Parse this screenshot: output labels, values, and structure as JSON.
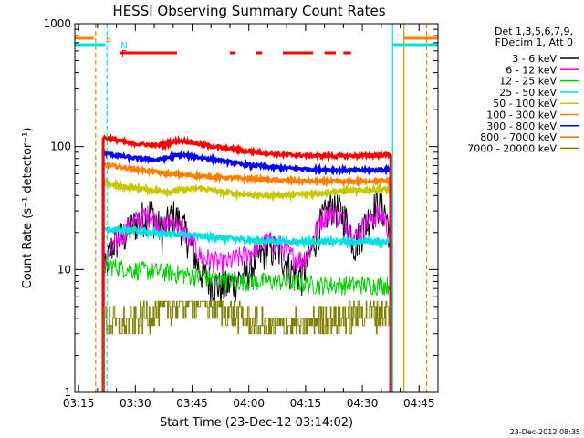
{
  "chart_data": {
    "type": "line",
    "title": "HESSI Observing Summary Count Rates",
    "xlabel": "Start Time (23-Dec-12 03:14:02)",
    "ylabel": "Count Rate (s⁻¹ detector⁻¹)",
    "footer": "23-Dec-2012 08:35",
    "x_axis": {
      "min_minutes": 0,
      "max_minutes": 96,
      "ticks": [
        {
          "label": "03:15",
          "minutes": 1
        },
        {
          "label": "03:30",
          "minutes": 16
        },
        {
          "label": "03:45",
          "minutes": 31
        },
        {
          "label": "04:00",
          "minutes": 46
        },
        {
          "label": "04:15",
          "minutes": 61
        },
        {
          "label": "04:30",
          "minutes": 76
        },
        {
          "label": "04:45",
          "minutes": 91
        }
      ]
    },
    "y_axis": {
      "scale": "log",
      "min": 1,
      "max": 1000,
      "ticks": [
        {
          "label": "1",
          "value": 1
        },
        {
          "label": "10",
          "value": 10
        },
        {
          "label": "100",
          "value": 100
        },
        {
          "label": "1000",
          "value": 1000
        }
      ]
    },
    "legend": {
      "position": "top-right",
      "header": [
        "Det 1,3,5,6,7,9,",
        "FDecim 1, Att 0"
      ],
      "entries": [
        {
          "label": "3 - 6 keV",
          "color": "#000000"
        },
        {
          "label": "6 - 12 keV",
          "color": "#ff00ff"
        },
        {
          "label": "12 - 25 keV",
          "color": "#00d000"
        },
        {
          "label": "25 - 50 keV",
          "color": "#00e0e0"
        },
        {
          "label": "50 - 100 keV",
          "color": "#c8c800"
        },
        {
          "label": "100 - 300 keV",
          "color": "#ff8000"
        },
        {
          "label": "300 - 800 keV",
          "color": "#0000ff"
        },
        {
          "label": "800 - 7000 keV",
          "color": "#e07000"
        },
        {
          "label": "7000 - 20000 keV",
          "color": "#808000"
        }
      ]
    },
    "flags": [
      {
        "label": "S",
        "color": "#ff8000",
        "segments": [
          [
            0,
            5
          ],
          [
            87,
            96
          ]
        ]
      },
      {
        "label": "N",
        "color": "#00e0e0",
        "segments": [
          [
            0,
            8
          ],
          [
            84,
            96
          ]
        ]
      },
      {
        "label": "F",
        "color": "#ff0000",
        "segments": [
          [
            12,
            27
          ],
          [
            41,
            42.5
          ],
          [
            48,
            49.5
          ],
          [
            55,
            63
          ],
          [
            66,
            69
          ],
          [
            71,
            73
          ]
        ]
      }
    ],
    "vertical_lines": [
      {
        "minutes": 5.5,
        "color": "#ff8000",
        "style": "dashed"
      },
      {
        "minutes": 8.5,
        "color": "#00e0e0",
        "style": "dashed"
      },
      {
        "minutes": 84,
        "color": "#00e0e0",
        "style": "solid"
      },
      {
        "minutes": 87,
        "color": "#c8a000",
        "style": "solid"
      },
      {
        "minutes": 93,
        "color": "#ff8000",
        "style": "dashed"
      }
    ],
    "data_range_minutes": [
      7.5,
      83.5
    ],
    "series": [
      {
        "name": "3 - 6 keV",
        "color": "#000000",
        "noise": 0.35,
        "x": [
          8,
          10,
          14,
          17,
          20,
          23,
          26,
          28,
          31,
          33,
          36,
          39,
          42,
          45,
          48,
          51,
          54,
          57,
          60,
          62,
          65,
          68,
          71,
          74,
          77,
          80,
          82,
          83
        ],
        "y": [
          10,
          16,
          20,
          26,
          30,
          20,
          28,
          24,
          15,
          10,
          8,
          7,
          8,
          9,
          12,
          15,
          14,
          10,
          9,
          12,
          24,
          34,
          28,
          16,
          24,
          35,
          30,
          22
        ]
      },
      {
        "name": "6 - 12 keV",
        "color": "#ff00ff",
        "noise": 0.22,
        "x": [
          8,
          10,
          14,
          17,
          20,
          23,
          26,
          28,
          31,
          33,
          36,
          39,
          42,
          45,
          48,
          51,
          54,
          57,
          60,
          62,
          65,
          68,
          71,
          74,
          77,
          80,
          82,
          83
        ],
        "y": [
          11,
          15,
          22,
          26,
          28,
          22,
          25,
          22,
          16,
          13,
          12,
          11,
          12,
          13,
          15,
          17,
          16,
          13,
          12,
          14,
          26,
          30,
          26,
          18,
          24,
          28,
          26,
          20
        ]
      },
      {
        "name": "12 - 25 keV",
        "color": "#00d000",
        "noise": 0.18,
        "x": [
          8,
          15,
          25,
          35,
          45,
          55,
          65,
          75,
          83
        ],
        "y": [
          11,
          10,
          9.5,
          8.5,
          8,
          8,
          7.5,
          7.5,
          7.5
        ]
      },
      {
        "name": "25 - 50 keV",
        "color": "#00e0e0",
        "noise": 0.05,
        "x": [
          8,
          20,
          35,
          50,
          65,
          83
        ],
        "y": [
          21.5,
          20,
          18.5,
          17,
          16.8,
          17
        ]
      },
      {
        "name": "50 - 100 keV",
        "color": "#c8c800",
        "noise": 0.04,
        "x": [
          8,
          15,
          25,
          33,
          40,
          50,
          60,
          70,
          83
        ],
        "y": [
          50,
          46,
          43,
          46,
          42,
          40,
          41,
          43,
          45
        ]
      },
      {
        "name": "100 - 300 keV",
        "color": "#ff8000",
        "noise": 0.03,
        "x": [
          8,
          15,
          25,
          35,
          45,
          55,
          65,
          75,
          83
        ],
        "y": [
          71,
          66,
          60,
          57,
          55,
          53,
          52,
          52,
          53
        ]
      },
      {
        "name": "300 - 800 keV",
        "color": "#0000ff",
        "noise": 0.03,
        "x": [
          8,
          15,
          22,
          28,
          35,
          45,
          55,
          65,
          75,
          83
        ],
        "y": [
          88,
          81,
          78,
          86,
          80,
          71,
          67,
          65,
          64,
          65
        ]
      },
      {
        "name": "800 - 7000 keV",
        "color": "#ff0000",
        "noise": 0.03,
        "x": [
          8,
          15,
          22,
          28,
          35,
          45,
          55,
          65,
          75,
          83
        ],
        "y": [
          118,
          106,
          102,
          112,
          102,
          92,
          86,
          84,
          84,
          86
        ]
      },
      {
        "name": "7000 - 20000 keV",
        "color": "#808000",
        "noise": 0.3,
        "x": [
          8,
          12,
          16,
          20,
          25,
          30,
          35,
          40,
          45,
          50,
          55,
          60,
          65,
          70,
          75,
          80,
          83
        ],
        "y": [
          4,
          3.5,
          4,
          4.5,
          5,
          5.5,
          5.5,
          4.5,
          4,
          3.5,
          3.5,
          3.5,
          4,
          4,
          4.5,
          4.5,
          4.5
        ]
      }
    ]
  }
}
